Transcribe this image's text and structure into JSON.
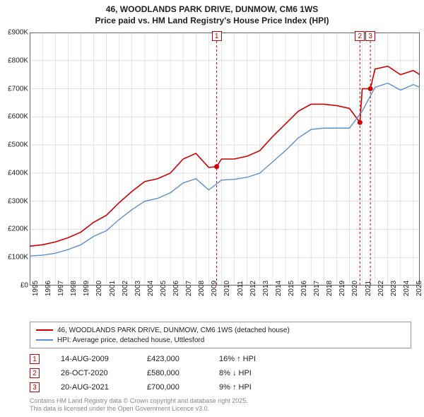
{
  "title_line1": "46, WOODLANDS PARK DRIVE, DUNMOW, CM6 1WS",
  "title_line2": "Price paid vs. HM Land Registry's House Price Index (HPI)",
  "chart": {
    "type": "line",
    "background_color": "#ffffff",
    "grid_color": "#cccccc",
    "axis_color": "#666666",
    "x_years": [
      1995,
      1996,
      1997,
      1998,
      1999,
      2000,
      2001,
      2002,
      2003,
      2004,
      2005,
      2006,
      2007,
      2008,
      2009,
      2010,
      2011,
      2012,
      2013,
      2014,
      2015,
      2016,
      2017,
      2018,
      2019,
      2020,
      2021,
      2022,
      2023,
      2024,
      2025
    ],
    "x_min": 1995,
    "x_max": 2025.5,
    "ylim": [
      0,
      900000
    ],
    "ytick_step": 100000,
    "y_tick_labels": [
      "£0",
      "£100K",
      "£200K",
      "£300K",
      "£400K",
      "£500K",
      "£600K",
      "£700K",
      "£800K",
      "£900K"
    ],
    "title_fontsize": 12,
    "label_fontsize": 10,
    "series": [
      {
        "name": "46, WOODLANDS PARK DRIVE, DUNMOW, CM6 1WS (detached house)",
        "color": "#cc0000",
        "line_width": 1.6,
        "values": [
          [
            1995,
            140000
          ],
          [
            1996,
            145000
          ],
          [
            1997,
            155000
          ],
          [
            1998,
            170000
          ],
          [
            1999,
            190000
          ],
          [
            2000,
            225000
          ],
          [
            2001,
            250000
          ],
          [
            2002,
            295000
          ],
          [
            2003,
            335000
          ],
          [
            2004,
            370000
          ],
          [
            2005,
            380000
          ],
          [
            2006,
            400000
          ],
          [
            2007,
            450000
          ],
          [
            2008,
            470000
          ],
          [
            2009,
            420000
          ],
          [
            2009.62,
            423000
          ],
          [
            2010,
            450000
          ],
          [
            2011,
            450000
          ],
          [
            2012,
            460000
          ],
          [
            2013,
            480000
          ],
          [
            2014,
            530000
          ],
          [
            2015,
            575000
          ],
          [
            2016,
            620000
          ],
          [
            2017,
            645000
          ],
          [
            2018,
            645000
          ],
          [
            2019,
            640000
          ],
          [
            2020,
            630000
          ],
          [
            2020.82,
            580000
          ],
          [
            2021,
            700000
          ],
          [
            2021.64,
            700000
          ],
          [
            2022,
            770000
          ],
          [
            2023,
            780000
          ],
          [
            2024,
            750000
          ],
          [
            2025,
            765000
          ],
          [
            2025.5,
            750000
          ]
        ]
      },
      {
        "name": "HPI: Average price, detached house, Uttlesford",
        "color": "#5b8fd0",
        "line_width": 1.4,
        "values": [
          [
            1995,
            105000
          ],
          [
            1996,
            108000
          ],
          [
            1997,
            115000
          ],
          [
            1998,
            128000
          ],
          [
            1999,
            145000
          ],
          [
            2000,
            175000
          ],
          [
            2001,
            195000
          ],
          [
            2002,
            235000
          ],
          [
            2003,
            270000
          ],
          [
            2004,
            300000
          ],
          [
            2005,
            310000
          ],
          [
            2006,
            330000
          ],
          [
            2007,
            365000
          ],
          [
            2008,
            380000
          ],
          [
            2009,
            340000
          ],
          [
            2010,
            375000
          ],
          [
            2011,
            378000
          ],
          [
            2012,
            385000
          ],
          [
            2013,
            400000
          ],
          [
            2014,
            440000
          ],
          [
            2015,
            480000
          ],
          [
            2016,
            525000
          ],
          [
            2017,
            555000
          ],
          [
            2018,
            560000
          ],
          [
            2019,
            560000
          ],
          [
            2020,
            560000
          ],
          [
            2021,
            620000
          ],
          [
            2022,
            705000
          ],
          [
            2023,
            720000
          ],
          [
            2024,
            695000
          ],
          [
            2025,
            715000
          ],
          [
            2025.5,
            705000
          ]
        ]
      }
    ],
    "sale_markers": [
      {
        "label": "1",
        "x": 2009.62,
        "y": 423000
      },
      {
        "label": "2",
        "x": 2020.82,
        "y": 580000
      },
      {
        "label": "3",
        "x": 2021.64,
        "y": 700000
      }
    ],
    "marker_point_color": "#cc0000",
    "marker_point_radius": 3.5,
    "marker_box_border": "#cc0000"
  },
  "legend": {
    "items": [
      {
        "color": "#cc0000",
        "text": "46, WOODLANDS PARK DRIVE, DUNMOW, CM6 1WS (detached house)"
      },
      {
        "color": "#5b8fd0",
        "text": "HPI: Average price, detached house, Uttlesford"
      }
    ]
  },
  "sales": [
    {
      "n": "1",
      "date": "14-AUG-2009",
      "price": "£423,000",
      "delta": "16% ↑ HPI"
    },
    {
      "n": "2",
      "date": "26-OCT-2020",
      "price": "£580,000",
      "delta": "8% ↓ HPI"
    },
    {
      "n": "3",
      "date": "20-AUG-2021",
      "price": "£700,000",
      "delta": "9% ↑ HPI"
    }
  ],
  "footer_line1": "Contains HM Land Registry data © Crown copyright and database right 2025.",
  "footer_line2": "This data is licensed under the Open Government Licence v3.0."
}
